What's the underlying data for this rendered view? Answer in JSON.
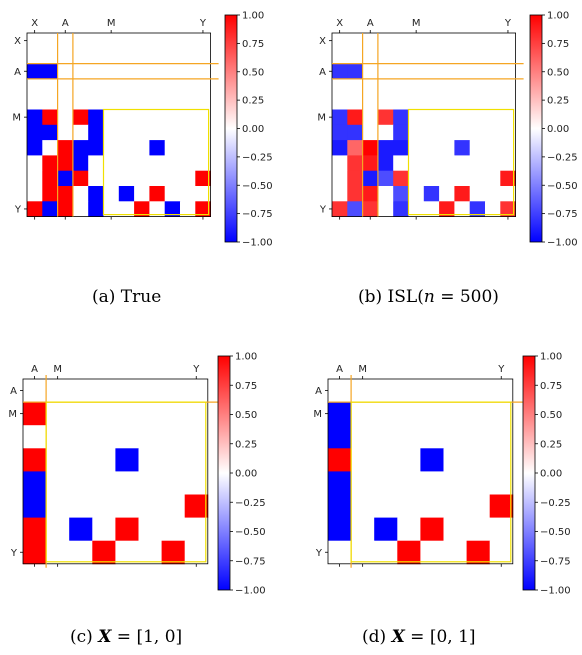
{
  "colorbar": {
    "ticks": [
      "1.00",
      "0.75",
      "0.50",
      "0.25",
      "0.00",
      "−0.25",
      "−0.50",
      "−0.75",
      "−1.00"
    ],
    "colors": {
      "neg": "#0000ff",
      "mid": "#ffffff",
      "pos": "#ff0000",
      "box_orange": "#f5a623",
      "box_yellow": "#f0e000"
    }
  },
  "panels": [
    {
      "caption_prefix": "(a) True",
      "chart_data": {
        "type": "heatmap",
        "xticks": [
          "X",
          "A",
          "M",
          "Y"
        ],
        "yticks": [
          "X",
          "A",
          "M",
          "Y"
        ],
        "clim": [
          -1,
          1
        ],
        "matrix": [
          [
            0,
            0,
            0,
            0,
            0,
            0,
            0,
            0,
            0,
            0,
            0,
            0
          ],
          [
            0,
            0,
            0,
            0,
            0,
            0,
            0,
            0,
            0,
            0,
            0,
            0
          ],
          [
            -1,
            -1,
            0,
            0,
            0,
            0,
            0,
            0,
            0,
            0,
            0,
            0
          ],
          [
            0,
            0,
            0,
            0,
            0,
            0,
            0,
            0,
            0,
            0,
            0,
            0
          ],
          [
            0,
            0,
            0,
            0,
            0,
            0,
            0,
            0,
            0,
            0,
            0,
            0
          ],
          [
            -1,
            1,
            0,
            1,
            -1,
            0,
            0,
            0,
            0,
            0,
            0,
            0
          ],
          [
            -1,
            -1,
            0,
            0,
            -1,
            0,
            0,
            0,
            0,
            0,
            0,
            0
          ],
          [
            -1,
            0,
            1,
            -1,
            -1,
            0,
            0,
            0,
            -1,
            0,
            0,
            0
          ],
          [
            0,
            1,
            1,
            -1,
            0,
            0,
            0,
            0,
            0,
            0,
            0,
            0
          ],
          [
            0,
            1,
            -1,
            1,
            0,
            0,
            0,
            0,
            0,
            0,
            0,
            1
          ],
          [
            0,
            1,
            1,
            0,
            -1,
            0,
            -1,
            0,
            1,
            0,
            0,
            0
          ],
          [
            1,
            -1,
            1,
            0,
            -1,
            0,
            0,
            1,
            0,
            -1,
            0,
            1
          ]
        ]
      }
    },
    {
      "caption_prefix": "(b) ISL(",
      "caption_math": "n",
      "caption_suffix": " = 500)",
      "chart_data": {
        "type": "heatmap",
        "xticks": [
          "X",
          "A",
          "M",
          "Y"
        ],
        "yticks": [
          "X",
          "A",
          "M",
          "Y"
        ],
        "clim": [
          -1,
          1
        ],
        "matrix": [
          [
            0,
            0,
            0,
            0,
            0,
            0,
            0,
            0,
            0,
            0,
            0,
            0
          ],
          [
            0,
            0,
            0,
            0,
            0,
            0,
            0,
            0,
            0,
            0,
            0,
            0
          ],
          [
            -0.8,
            -0.8,
            0,
            0,
            0,
            0,
            0,
            0,
            0,
            0,
            0,
            0
          ],
          [
            0,
            0,
            0,
            0,
            0,
            0,
            0,
            0,
            0,
            0,
            0,
            0
          ],
          [
            0,
            0,
            0,
            0,
            0,
            0,
            0,
            0,
            0,
            0,
            0,
            0
          ],
          [
            -0.8,
            0.9,
            0,
            0.8,
            -0.8,
            0,
            0,
            0,
            0,
            0,
            0,
            0
          ],
          [
            -0.8,
            -0.8,
            0,
            0,
            -0.8,
            0,
            0,
            0,
            0,
            0,
            0,
            0
          ],
          [
            -0.9,
            0.6,
            1,
            -0.9,
            -0.9,
            0,
            0,
            0,
            -0.8,
            0,
            0,
            0
          ],
          [
            0,
            0.8,
            0.9,
            -0.9,
            0,
            0,
            0,
            0,
            0,
            0,
            0,
            0
          ],
          [
            0,
            0.8,
            -0.9,
            -0.7,
            0.8,
            0,
            0,
            0,
            0,
            0,
            0,
            0.9
          ],
          [
            0,
            0.8,
            0.9,
            0,
            -0.7,
            0,
            -0.8,
            0,
            0.9,
            0,
            0,
            0
          ],
          [
            0.8,
            -0.7,
            0.8,
            0,
            -0.8,
            0,
            0,
            0.9,
            0,
            -0.8,
            0,
            0.8
          ]
        ]
      }
    },
    {
      "caption_prefix": "(c) ",
      "caption_bold": "X",
      "caption_suffix": " = [1, 0]",
      "chart_data": {
        "type": "heatmap",
        "xticks": [
          "A",
          "M",
          "Y"
        ],
        "yticks": [
          "A",
          "M",
          "Y"
        ],
        "clim": [
          -1,
          1
        ],
        "matrix": [
          [
            0,
            0,
            0,
            0,
            0,
            0,
            0,
            0
          ],
          [
            1,
            0,
            0,
            0,
            0,
            0,
            0,
            0
          ],
          [
            0,
            0,
            0,
            0,
            0,
            0,
            0,
            0
          ],
          [
            1,
            0,
            0,
            0,
            -1,
            0,
            0,
            0
          ],
          [
            -1,
            0,
            0,
            0,
            0,
            0,
            0,
            0
          ],
          [
            -1,
            0,
            0,
            0,
            0,
            0,
            0,
            1
          ],
          [
            1,
            0,
            -1,
            0,
            1,
            0,
            0,
            0
          ],
          [
            1,
            0,
            0,
            1,
            0,
            0,
            1,
            0
          ]
        ]
      }
    },
    {
      "caption_prefix": "(d) ",
      "caption_bold": "X",
      "caption_suffix": " = [0, 1]",
      "chart_data": {
        "type": "heatmap",
        "xticks": [
          "A",
          "M",
          "Y"
        ],
        "yticks": [
          "A",
          "M",
          "Y"
        ],
        "clim": [
          -1,
          1
        ],
        "matrix": [
          [
            0,
            0,
            0,
            0,
            0,
            0,
            0,
            0
          ],
          [
            -1,
            0,
            0,
            0,
            0,
            0,
            0,
            0
          ],
          [
            -1,
            0,
            0,
            0,
            0,
            0,
            0,
            0
          ],
          [
            1,
            0,
            0,
            0,
            -1,
            0,
            0,
            0
          ],
          [
            -1,
            0,
            0,
            0,
            0,
            0,
            0,
            0
          ],
          [
            -1,
            0,
            0,
            0,
            0,
            0,
            0,
            1
          ],
          [
            -1,
            0,
            -1,
            0,
            1,
            0,
            0,
            0
          ],
          [
            0,
            0,
            0,
            1,
            0,
            0,
            1,
            0
          ]
        ]
      }
    }
  ]
}
